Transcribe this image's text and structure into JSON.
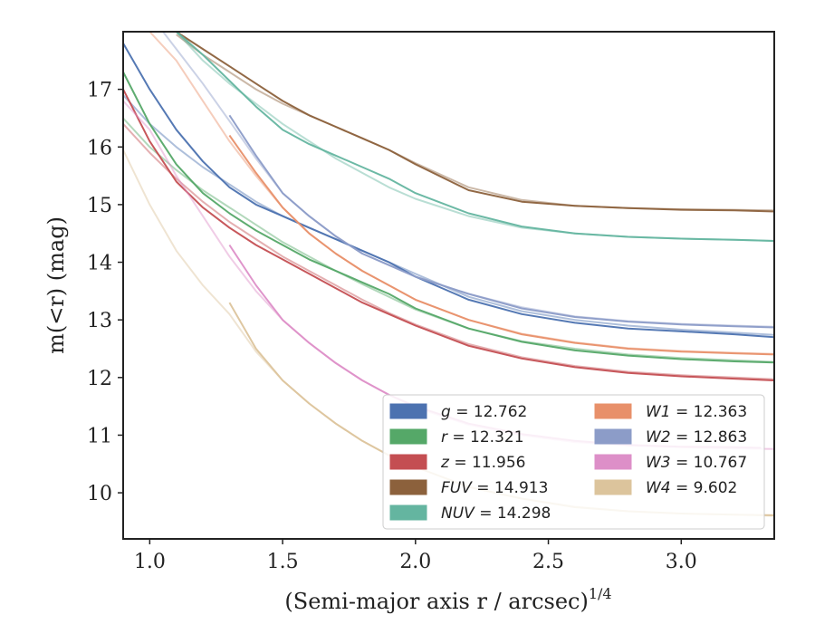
{
  "chart_data": {
    "type": "line",
    "xlabel": "(Semi-major axis r / arcsec)",
    "xlabel_exponent": "1/4",
    "ylabel": "m(<r) (mag)",
    "xlim": [
      0.9,
      3.35
    ],
    "ylim": [
      18.0,
      9.2
    ],
    "y_inverted": true,
    "x_ticks": [
      1.0,
      1.5,
      2.0,
      2.5,
      3.0
    ],
    "x_tick_labels": [
      "1.0",
      "1.5",
      "2.0",
      "2.5",
      "3.0"
    ],
    "y_ticks": [
      10,
      11,
      12,
      13,
      14,
      15,
      16,
      17
    ],
    "y_tick_labels": [
      "10",
      "11",
      "12",
      "13",
      "14",
      "15",
      "16",
      "17"
    ],
    "grid": false,
    "legend_position": "lower-right",
    "series": [
      {
        "name": "g",
        "label_name": "g",
        "label_value": "= 12.762",
        "color": "#4c72b0",
        "x": [
          0.9,
          1.0,
          1.1,
          1.2,
          1.3,
          1.4,
          1.5,
          1.6,
          1.7,
          1.8,
          1.9,
          2.0,
          2.2,
          2.4,
          2.6,
          2.8,
          3.0,
          3.2,
          3.35
        ],
        "y": [
          17.8,
          17.0,
          16.3,
          15.75,
          15.3,
          15.0,
          14.8,
          14.6,
          14.4,
          14.2,
          14.0,
          13.75,
          13.35,
          13.1,
          12.95,
          12.85,
          12.8,
          12.75,
          12.7
        ],
        "x2": [
          0.9,
          1.0,
          1.1,
          1.2,
          1.3,
          1.4,
          1.5,
          1.6,
          1.7,
          1.8,
          1.9,
          2.0,
          2.2,
          2.4,
          2.6,
          2.8,
          3.0,
          3.2,
          3.35
        ],
        "y2": [
          16.9,
          16.4,
          16.0,
          15.65,
          15.35,
          15.05,
          14.8,
          14.6,
          14.4,
          14.2,
          14.0,
          13.8,
          13.4,
          13.15,
          13.0,
          12.9,
          12.83,
          12.78,
          12.74
        ]
      },
      {
        "name": "r",
        "label_name": "r",
        "label_value": "= 12.321",
        "color": "#55a868",
        "x": [
          0.9,
          1.0,
          1.1,
          1.2,
          1.3,
          1.4,
          1.5,
          1.6,
          1.7,
          1.8,
          1.9,
          2.0,
          2.2,
          2.4,
          2.6,
          2.8,
          3.0,
          3.2,
          3.35
        ],
        "y": [
          17.3,
          16.4,
          15.7,
          15.2,
          14.85,
          14.55,
          14.3,
          14.05,
          13.85,
          13.65,
          13.45,
          13.2,
          12.85,
          12.62,
          12.47,
          12.38,
          12.32,
          12.28,
          12.26
        ],
        "x2": [
          0.9,
          1.0,
          1.1,
          1.2,
          1.3,
          1.4,
          1.5,
          1.6,
          1.7,
          1.8,
          1.9,
          2.0,
          2.2,
          2.4,
          2.6,
          2.8,
          3.0,
          3.2,
          3.35
        ],
        "y2": [
          16.5,
          16.0,
          15.6,
          15.25,
          14.95,
          14.65,
          14.35,
          14.1,
          13.85,
          13.62,
          13.4,
          13.18,
          12.85,
          12.63,
          12.5,
          12.4,
          12.34,
          12.3,
          12.27
        ]
      },
      {
        "name": "z",
        "label_name": "z",
        "label_value": "= 11.956",
        "color": "#c44e52",
        "x": [
          0.9,
          1.0,
          1.1,
          1.2,
          1.3,
          1.4,
          1.5,
          1.6,
          1.7,
          1.8,
          1.9,
          2.0,
          2.2,
          2.4,
          2.6,
          2.8,
          3.0,
          3.2,
          3.35
        ],
        "y": [
          17.0,
          16.1,
          15.4,
          14.95,
          14.6,
          14.3,
          14.05,
          13.8,
          13.55,
          13.3,
          13.1,
          12.9,
          12.55,
          12.33,
          12.18,
          12.08,
          12.02,
          11.98,
          11.95
        ],
        "x2": [
          0.9,
          1.0,
          1.1,
          1.2,
          1.3,
          1.4,
          1.5,
          1.6,
          1.7,
          1.8,
          1.9,
          2.0,
          2.2,
          2.4,
          2.6,
          2.8,
          3.0,
          3.2,
          3.35
        ],
        "y2": [
          16.4,
          15.9,
          15.45,
          15.05,
          14.7,
          14.4,
          14.1,
          13.85,
          13.6,
          13.35,
          13.12,
          12.92,
          12.58,
          12.35,
          12.2,
          12.1,
          12.04,
          12.0,
          11.97
        ]
      },
      {
        "name": "FUV",
        "label_name": "FUV",
        "label_value": "= 14.913",
        "color": "#8c613c",
        "x": [
          1.1,
          1.2,
          1.3,
          1.4,
          1.5,
          1.6,
          1.7,
          1.8,
          1.9,
          2.0,
          2.2,
          2.4,
          2.6,
          2.8,
          3.0,
          3.2,
          3.35
        ],
        "y": [
          18.0,
          17.7,
          17.4,
          17.1,
          16.8,
          16.55,
          16.35,
          16.15,
          15.95,
          15.7,
          15.25,
          15.05,
          14.98,
          14.94,
          14.91,
          14.9,
          14.88
        ],
        "x2": [
          1.1,
          1.2,
          1.3,
          1.4,
          1.5,
          1.6,
          1.7,
          1.8,
          1.9,
          2.0,
          2.2,
          2.4,
          2.6,
          2.8,
          3.0,
          3.2,
          3.35
        ],
        "y2": [
          17.95,
          17.6,
          17.3,
          17.0,
          16.75,
          16.55,
          16.35,
          16.15,
          15.95,
          15.72,
          15.3,
          15.08,
          14.98,
          14.94,
          14.92,
          14.91,
          14.9
        ]
      },
      {
        "name": "NUV",
        "label_name": "NUV",
        "label_value": "= 14.298",
        "color": "#64b5a0",
        "x": [
          1.1,
          1.2,
          1.3,
          1.4,
          1.5,
          1.6,
          1.7,
          1.8,
          1.9,
          2.0,
          2.2,
          2.4,
          2.6,
          2.8,
          3.0,
          3.2,
          3.35
        ],
        "y": [
          18.0,
          17.6,
          17.15,
          16.7,
          16.3,
          16.05,
          15.85,
          15.65,
          15.45,
          15.2,
          14.85,
          14.62,
          14.5,
          14.44,
          14.41,
          14.39,
          14.37
        ],
        "x2": [
          1.1,
          1.2,
          1.3,
          1.4,
          1.5,
          1.6,
          1.7,
          1.8,
          1.9,
          2.0,
          2.2,
          2.4,
          2.6,
          2.8,
          3.0,
          3.2,
          3.35
        ],
        "y2": [
          18.0,
          17.5,
          17.1,
          16.75,
          16.4,
          16.1,
          15.8,
          15.55,
          15.3,
          15.1,
          14.8,
          14.6,
          14.5,
          14.44,
          14.41,
          14.39,
          14.37
        ]
      },
      {
        "name": "W1",
        "label_name": "W1",
        "label_value": "= 12.363",
        "color": "#e8906a",
        "x": [
          1.3,
          1.4,
          1.5,
          1.6,
          1.7,
          1.8,
          1.9,
          2.0,
          2.2,
          2.4,
          2.6,
          2.8,
          3.0,
          3.2,
          3.35
        ],
        "y": [
          16.2,
          15.55,
          14.95,
          14.5,
          14.15,
          13.85,
          13.6,
          13.35,
          13.0,
          12.75,
          12.6,
          12.5,
          12.45,
          12.42,
          12.4
        ],
        "x2": [
          1.0,
          1.1,
          1.2,
          1.3,
          1.4,
          1.5,
          1.6,
          1.7,
          1.8,
          1.9,
          2.0,
          2.2,
          2.4,
          2.6,
          2.8,
          3.0,
          3.2,
          3.35
        ],
        "y2": [
          18.0,
          17.5,
          16.8,
          16.1,
          15.5,
          14.95,
          14.5,
          14.15,
          13.85,
          13.6,
          13.35,
          13.0,
          12.76,
          12.61,
          12.51,
          12.46,
          12.43,
          12.41
        ]
      },
      {
        "name": "W2",
        "label_name": "W2",
        "label_value": "= 12.863",
        "color": "#8c9cc8",
        "x": [
          1.3,
          1.4,
          1.5,
          1.6,
          1.7,
          1.8,
          1.9,
          2.0,
          2.2,
          2.4,
          2.6,
          2.8,
          3.0,
          3.2,
          3.35
        ],
        "y": [
          16.55,
          15.85,
          15.2,
          14.8,
          14.45,
          14.15,
          13.95,
          13.75,
          13.45,
          13.2,
          13.05,
          12.97,
          12.92,
          12.89,
          12.87
        ],
        "x2": [
          1.05,
          1.1,
          1.2,
          1.3,
          1.4,
          1.5,
          1.6,
          1.7,
          1.8,
          1.9,
          2.0,
          2.2,
          2.4,
          2.6,
          2.8,
          3.0,
          3.2,
          3.35
        ],
        "y2": [
          18.0,
          17.7,
          17.1,
          16.45,
          15.8,
          15.2,
          14.8,
          14.45,
          14.15,
          13.95,
          13.75,
          13.45,
          13.22,
          13.06,
          12.98,
          12.93,
          12.9,
          12.88
        ]
      },
      {
        "name": "W3",
        "label_name": "W3",
        "label_value": "= 10.767",
        "color": "#dd8fc8",
        "x": [
          1.3,
          1.4,
          1.5,
          1.6,
          1.7,
          1.8,
          1.9,
          2.0,
          2.2,
          2.4,
          2.6,
          2.8,
          3.0,
          3.2,
          3.3
        ],
        "y": [
          14.3,
          13.6,
          13.0,
          12.6,
          12.25,
          11.95,
          11.7,
          11.5,
          11.2,
          11.02,
          10.9,
          10.83,
          10.8,
          10.79,
          10.78
        ],
        "x2": [
          0.9,
          1.0,
          1.1,
          1.2,
          1.3,
          1.4,
          1.5,
          1.6,
          1.7,
          1.8,
          1.9,
          2.0,
          2.2,
          2.4,
          2.6,
          2.8,
          3.0,
          3.2,
          3.35
        ],
        "y2": [
          16.8,
          16.3,
          15.5,
          14.8,
          14.1,
          13.5,
          13.0,
          12.6,
          12.25,
          11.95,
          11.7,
          11.48,
          11.18,
          11.0,
          10.88,
          10.82,
          10.79,
          10.77,
          10.76
        ]
      },
      {
        "name": "W4",
        "label_name": "W4",
        "label_value": "= 9.602",
        "color": "#dcc49c",
        "x": [
          1.3,
          1.4,
          1.5,
          1.6,
          1.7,
          1.8,
          1.9,
          2.0,
          2.2,
          2.4,
          2.6,
          2.8,
          3.0,
          3.2,
          3.35
        ],
        "y": [
          13.3,
          12.5,
          11.95,
          11.55,
          11.2,
          10.9,
          10.65,
          10.45,
          10.1,
          9.9,
          9.75,
          9.68,
          9.64,
          9.62,
          9.61
        ],
        "x2": [
          0.9,
          1.0,
          1.1,
          1.2,
          1.3,
          1.4,
          1.5,
          1.6,
          1.7,
          1.8,
          1.9,
          2.0,
          2.2,
          2.4,
          2.6,
          2.8,
          3.0,
          3.2,
          3.35
        ],
        "y2": [
          15.95,
          15.0,
          14.2,
          13.6,
          13.1,
          12.45,
          11.95,
          11.55,
          11.2,
          10.9,
          10.65,
          10.45,
          10.1,
          9.9,
          9.76,
          9.68,
          9.64,
          9.62,
          9.6
        ]
      }
    ]
  }
}
